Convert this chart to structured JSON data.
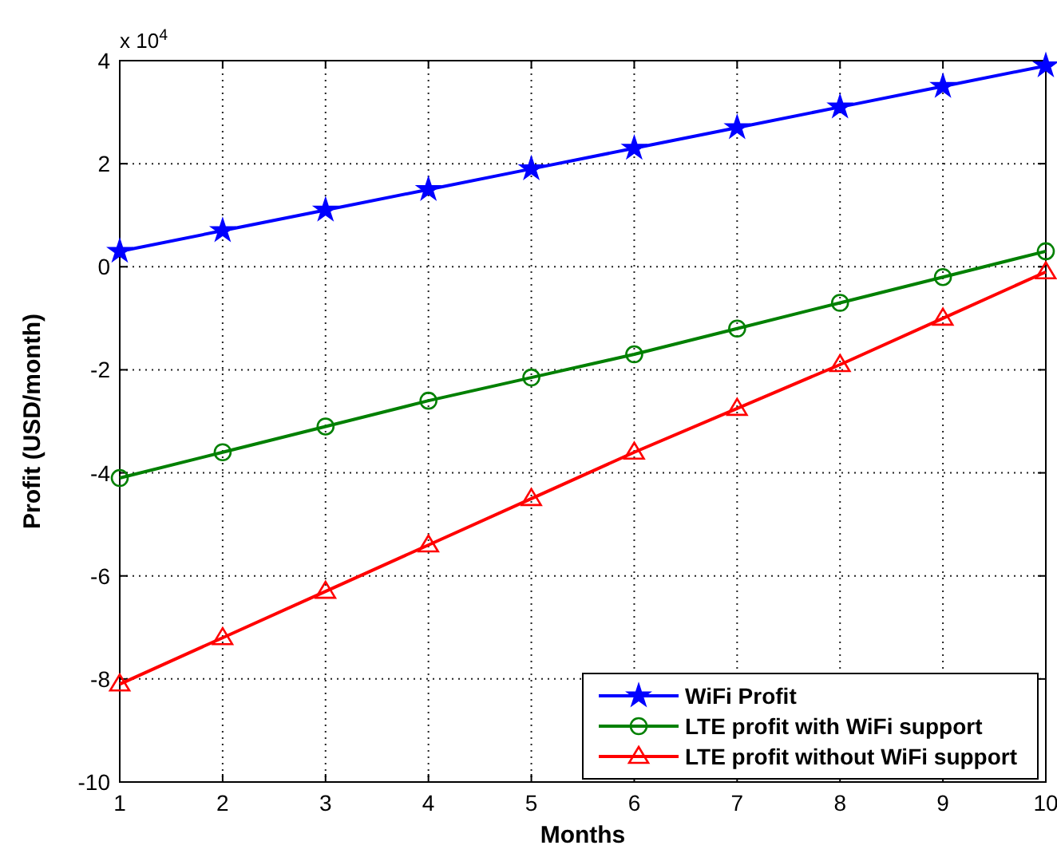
{
  "chart_data": {
    "type": "line",
    "xlabel": "Months",
    "ylabel": "Profit (USD/month)",
    "annotations": [
      "x 10$^{4}$"
    ],
    "x": [
      1,
      2,
      3,
      4,
      5,
      6,
      7,
      8,
      9,
      10
    ],
    "series": [
      {
        "name": "WiFi Profit",
        "color": "#0000ff",
        "marker": "star",
        "values": [
          0.3,
          0.7,
          1.1,
          1.5,
          1.9,
          2.3,
          2.7,
          3.1,
          3.5,
          3.9
        ]
      },
      {
        "name": "LTE profit with WiFi support",
        "color": "#008000",
        "marker": "circle",
        "values": [
          -4.1,
          -3.6,
          -3.1,
          -2.6,
          -2.15,
          -1.7,
          -1.2,
          -0.7,
          -0.2,
          0.3
        ]
      },
      {
        "name": "LTE profit without WiFi support",
        "color": "#ff0000",
        "marker": "triangle",
        "values": [
          -8.1,
          -7.2,
          -6.3,
          -5.4,
          -4.5,
          -3.6,
          -2.75,
          -1.9,
          -1.0,
          -0.1
        ]
      }
    ],
    "xlim": [
      1,
      10
    ],
    "xticks": [
      1,
      2,
      3,
      4,
      5,
      6,
      7,
      8,
      9,
      10
    ],
    "ylim": [
      -10,
      4
    ],
    "yticks": [
      -10,
      -8,
      -6,
      -4,
      -2,
      0,
      2,
      4
    ],
    "grid": true,
    "legend": "bottom right",
    "line_style": "solid"
  }
}
